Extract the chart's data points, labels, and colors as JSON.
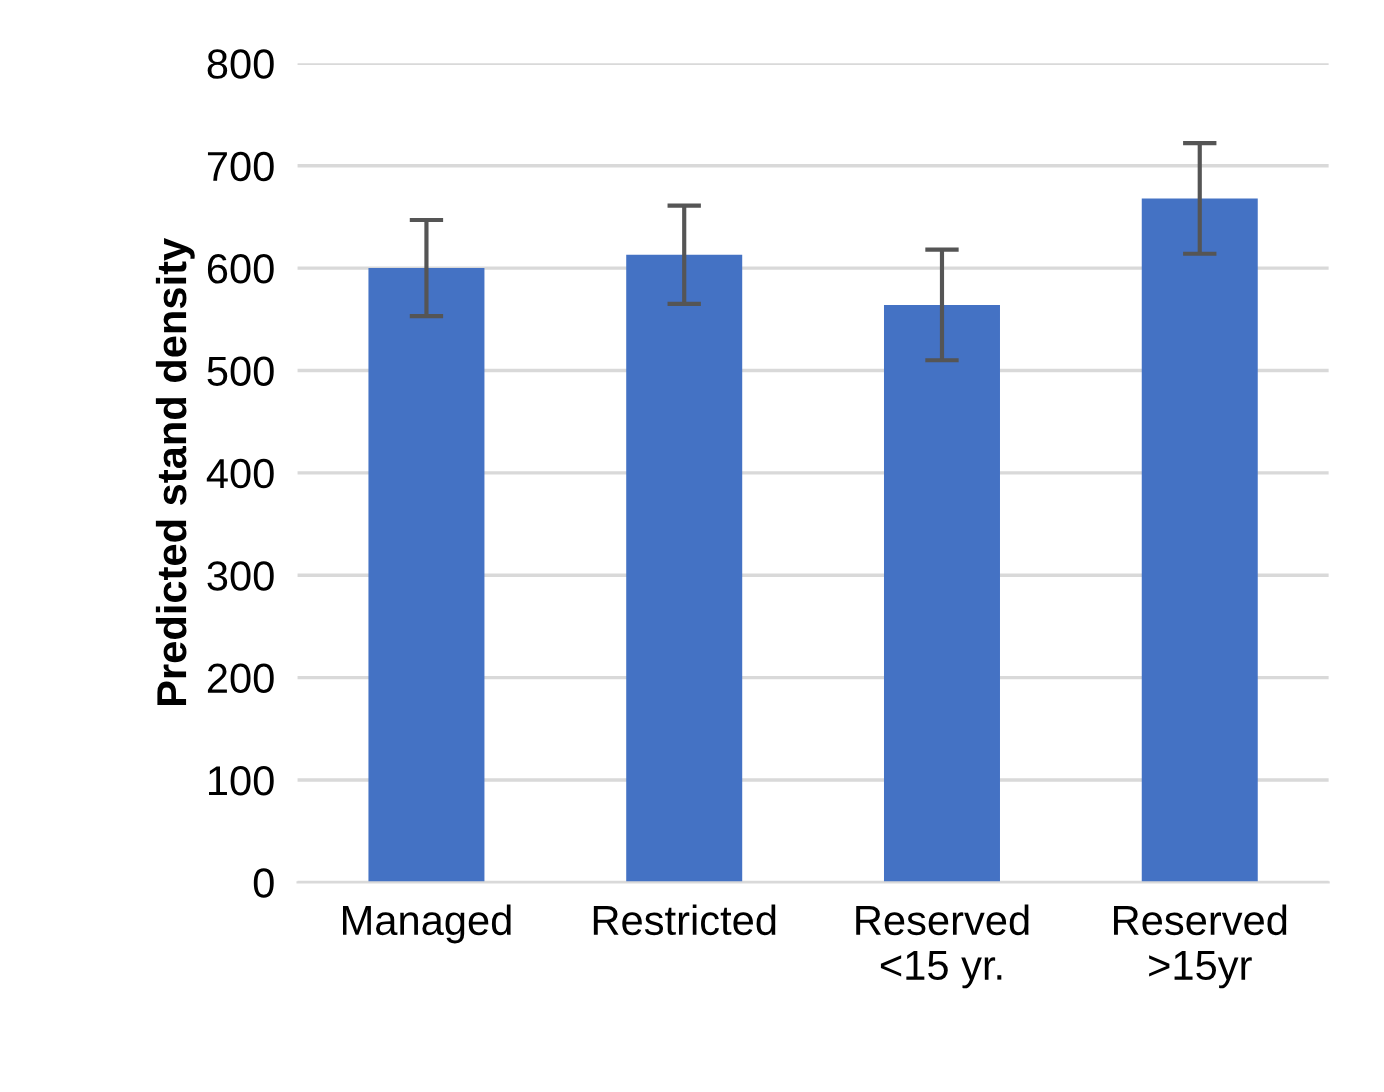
{
  "chart_data": {
    "type": "bar",
    "ylabel": "Predicted stand density",
    "categories": [
      "Managed",
      "Restricted",
      "Reserved\n<15 yr.",
      "Reserved\n>15yr"
    ],
    "values": [
      600,
      613,
      564,
      668
    ],
    "errors": [
      47,
      48,
      54,
      54
    ],
    "color": "#4472c4",
    "ylim": [
      0,
      800
    ],
    "yticks": [
      0,
      100,
      200,
      300,
      400,
      500,
      600,
      700,
      800
    ],
    "grid": "y"
  }
}
